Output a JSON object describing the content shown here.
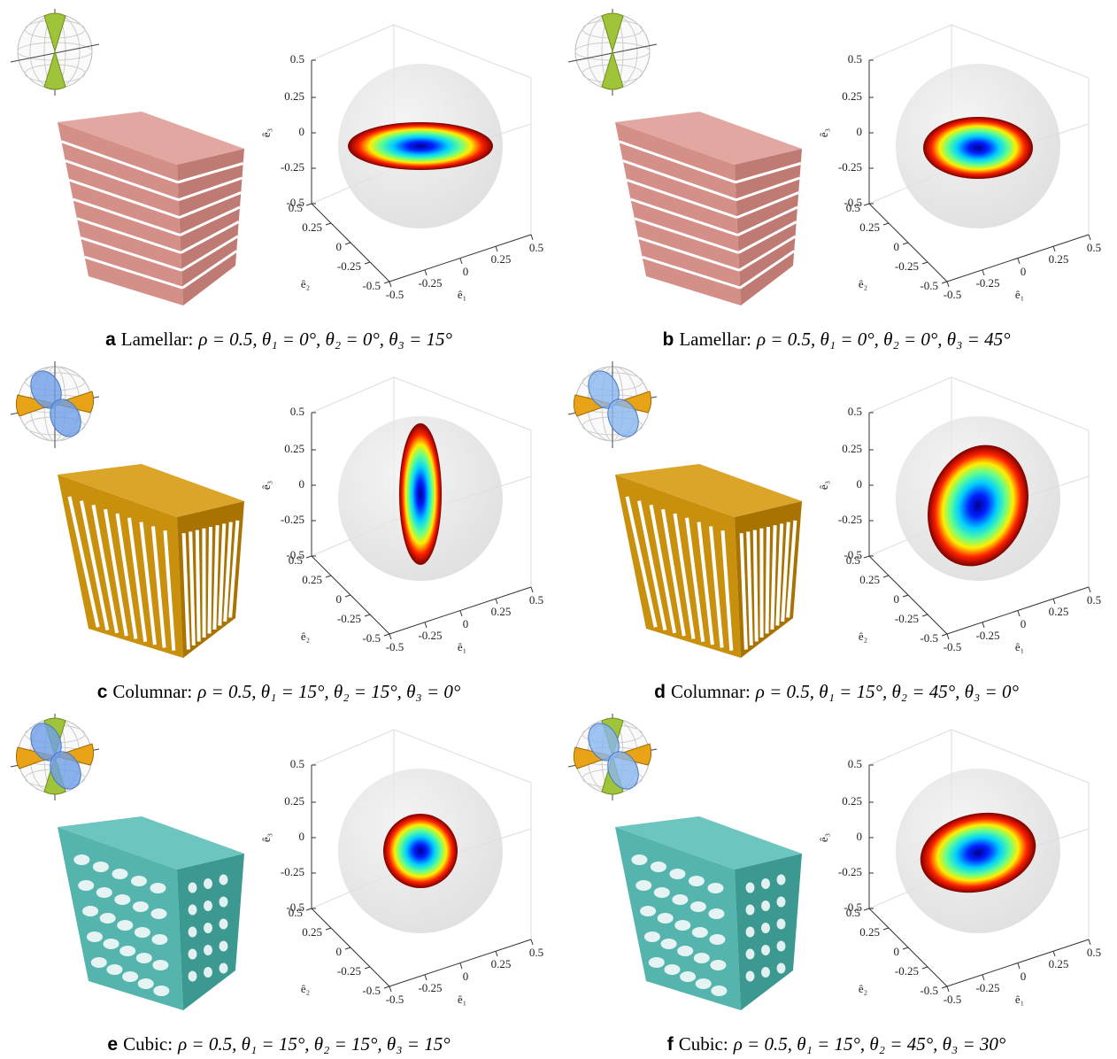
{
  "figure": {
    "axes": {
      "e3_label": "ê₃",
      "e2_label": "ê₂",
      "e1_label": "ê₁",
      "e3_ticks": [
        0.5,
        0.25,
        0,
        -0.25,
        -0.5
      ],
      "e2_ticks": [
        0.5,
        0.25,
        0,
        -0.25,
        -0.5
      ],
      "e1_ticks": [
        -0.5,
        -0.25,
        0,
        0.25,
        0.5
      ]
    },
    "panels": [
      {
        "letter": "a",
        "name": "Lamellar:",
        "params": "ρ = 0.5, θ₁ = 0°, θ₂ = 0°, θ₃ = 15°"
      },
      {
        "letter": "b",
        "name": "Lamellar:",
        "params": "ρ = 0.5, θ₁ = 0°, θ₂ = 0°, θ₃ = 45°"
      },
      {
        "letter": "c",
        "name": "Columnar:",
        "params": "ρ = 0.5, θ₁ = 15°, θ₂ = 15°, θ₃ = 0°"
      },
      {
        "letter": "d",
        "name": "Columnar:",
        "params": "ρ = 0.5, θ₁ = 15°, θ₂ = 45°, θ₃ = 0°"
      },
      {
        "letter": "e",
        "name": "Cubic:",
        "params": "ρ = 0.5, θ₁ = 15°, θ₂ = 15°, θ₃ = 15°"
      },
      {
        "letter": "f",
        "name": "Cubic:",
        "params": "ρ = 0.5, θ₁ = 15°, θ₂ = 45°, θ₃ = 30°"
      }
    ]
  }
}
